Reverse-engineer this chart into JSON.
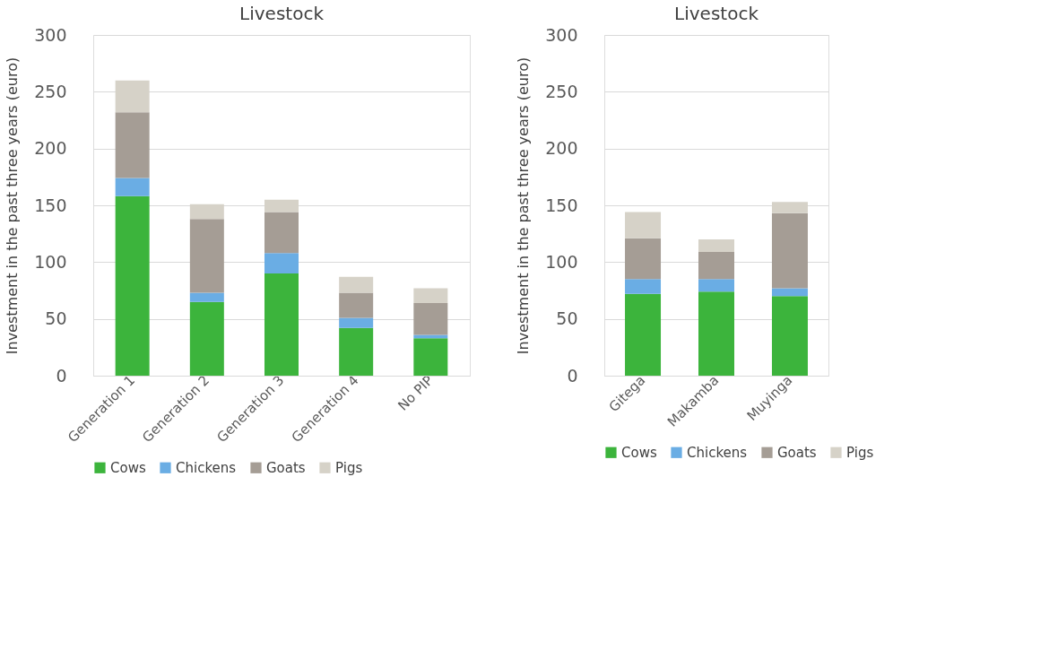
{
  "chart_data": [
    {
      "type": "bar",
      "stacked": true,
      "title": "Livestock",
      "ylabel": "Investment in the past three years (euro)",
      "categories": [
        "Generation 1",
        "Generation 2",
        "Generation 3",
        "Generation 4",
        "No PIP"
      ],
      "series": [
        {
          "name": "Cows",
          "color": "#3cb43c",
          "values": [
            158,
            65,
            90,
            42,
            33
          ]
        },
        {
          "name": "Chickens",
          "color": "#6aade4",
          "values": [
            16,
            8,
            18,
            9,
            3
          ]
        },
        {
          "name": "Goats",
          "color": "#a59d95",
          "values": [
            58,
            65,
            36,
            22,
            28
          ]
        },
        {
          "name": "Pigs",
          "color": "#d6d2c8",
          "values": [
            28,
            13,
            11,
            14,
            13
          ]
        }
      ],
      "ylim": [
        0,
        300
      ],
      "yticks": [
        0,
        50,
        100,
        150,
        200,
        250,
        300
      ],
      "grid": "y",
      "legend": "bottom"
    },
    {
      "type": "bar",
      "stacked": true,
      "title": "Livestock",
      "ylabel": "Investment in the past three years (euro)",
      "categories": [
        "Gitega",
        "Makamba",
        "Muyinga"
      ],
      "series": [
        {
          "name": "Cows",
          "color": "#3cb43c",
          "values": [
            72,
            74,
            70
          ]
        },
        {
          "name": "Chickens",
          "color": "#6aade4",
          "values": [
            13,
            11,
            7
          ]
        },
        {
          "name": "Goats",
          "color": "#a59d95",
          "values": [
            36,
            24,
            66
          ]
        },
        {
          "name": "Pigs",
          "color": "#d6d2c8",
          "values": [
            23,
            11,
            10
          ]
        }
      ],
      "ylim": [
        0,
        300
      ],
      "yticks": [
        0,
        50,
        100,
        150,
        200,
        250,
        300
      ],
      "grid": "y",
      "legend": "bottom"
    }
  ]
}
